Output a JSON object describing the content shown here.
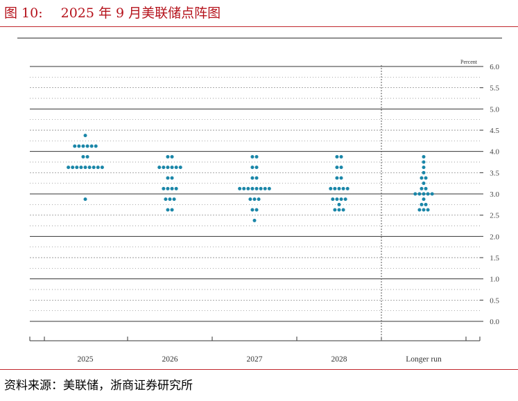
{
  "figure": {
    "number": "图 10:",
    "title": "2025 年 9 月美联储点阵图",
    "source": "资料来源：美联储，浙商证券研究所"
  },
  "colors": {
    "dot": "#1a86a8",
    "title": "#b5121b",
    "rule": "#c0262d",
    "grid_major": "#333333",
    "grid_minor": "#777777"
  },
  "chart_data": {
    "type": "scatter",
    "title": "",
    "xlabel": "",
    "ylabel": "Percent",
    "categories": [
      "2025",
      "2026",
      "2027",
      "2028",
      "Longer run"
    ],
    "ylim": [
      0.0,
      6.0
    ],
    "yticks": [
      "0.0",
      "0.5",
      "1.0",
      "1.5",
      "2.0",
      "2.5",
      "3.0",
      "3.5",
      "4.0",
      "4.5",
      "5.0",
      "5.5",
      "6.0"
    ],
    "grid": true,
    "legend": "none",
    "dots": [
      {
        "category": "2025",
        "counts": [
          [
            4.375,
            1
          ],
          [
            4.125,
            6
          ],
          [
            3.875,
            2
          ],
          [
            3.625,
            9
          ],
          [
            2.875,
            1
          ]
        ]
      },
      {
        "category": "2026",
        "counts": [
          [
            3.875,
            2
          ],
          [
            3.625,
            6
          ],
          [
            3.375,
            2
          ],
          [
            3.125,
            4
          ],
          [
            2.875,
            3
          ],
          [
            2.625,
            2
          ]
        ]
      },
      {
        "category": "2027",
        "counts": [
          [
            3.875,
            2
          ],
          [
            3.625,
            2
          ],
          [
            3.375,
            2
          ],
          [
            3.125,
            8
          ],
          [
            2.875,
            3
          ],
          [
            2.625,
            2
          ],
          [
            2.375,
            1
          ]
        ]
      },
      {
        "category": "2028",
        "counts": [
          [
            3.875,
            2
          ],
          [
            3.625,
            2
          ],
          [
            3.375,
            2
          ],
          [
            3.125,
            5
          ],
          [
            2.875,
            4
          ],
          [
            2.75,
            1
          ],
          [
            2.625,
            3
          ]
        ]
      },
      {
        "category": "Longer run",
        "counts": [
          [
            3.875,
            1
          ],
          [
            3.75,
            1
          ],
          [
            3.625,
            1
          ],
          [
            3.5,
            1
          ],
          [
            3.375,
            2
          ],
          [
            3.25,
            1
          ],
          [
            3.125,
            2
          ],
          [
            3.0,
            5
          ],
          [
            2.875,
            1
          ],
          [
            2.75,
            2
          ],
          [
            2.625,
            3
          ]
        ]
      }
    ]
  }
}
